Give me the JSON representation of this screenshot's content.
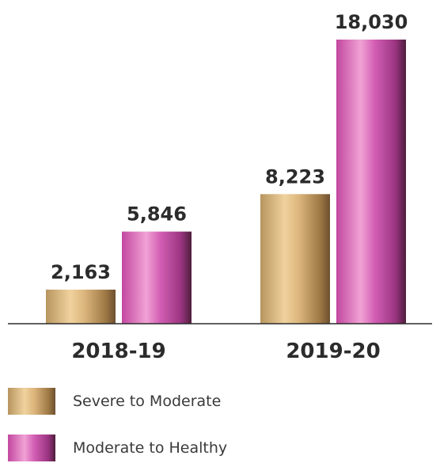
{
  "chart_data": {
    "type": "bar",
    "categories": [
      "2018-19",
      "2019-20"
    ],
    "series": [
      {
        "name": "Severe to Moderate",
        "values": [
          2163,
          8223
        ],
        "labels": [
          "2,163",
          "8,223"
        ],
        "color": "gold-gradient"
      },
      {
        "name": "Moderate to Healthy",
        "values": [
          5846,
          18030
        ],
        "labels": [
          "5,846",
          "18,030"
        ],
        "color": "magenta-gradient"
      }
    ],
    "ylim": [
      0,
      18030
    ],
    "grid": false,
    "legend_position": "bottom-left"
  },
  "legend": {
    "items": [
      {
        "label": "Severe to Moderate"
      },
      {
        "label": "Moderate to Healthy"
      }
    ]
  },
  "colors": {
    "gold_dark": "#8c6a3c",
    "gold_light": "#f0d29e",
    "magenta_dark": "#5a2446",
    "magenta_light": "#f1a2d5",
    "axis": "#2b2b2b"
  }
}
